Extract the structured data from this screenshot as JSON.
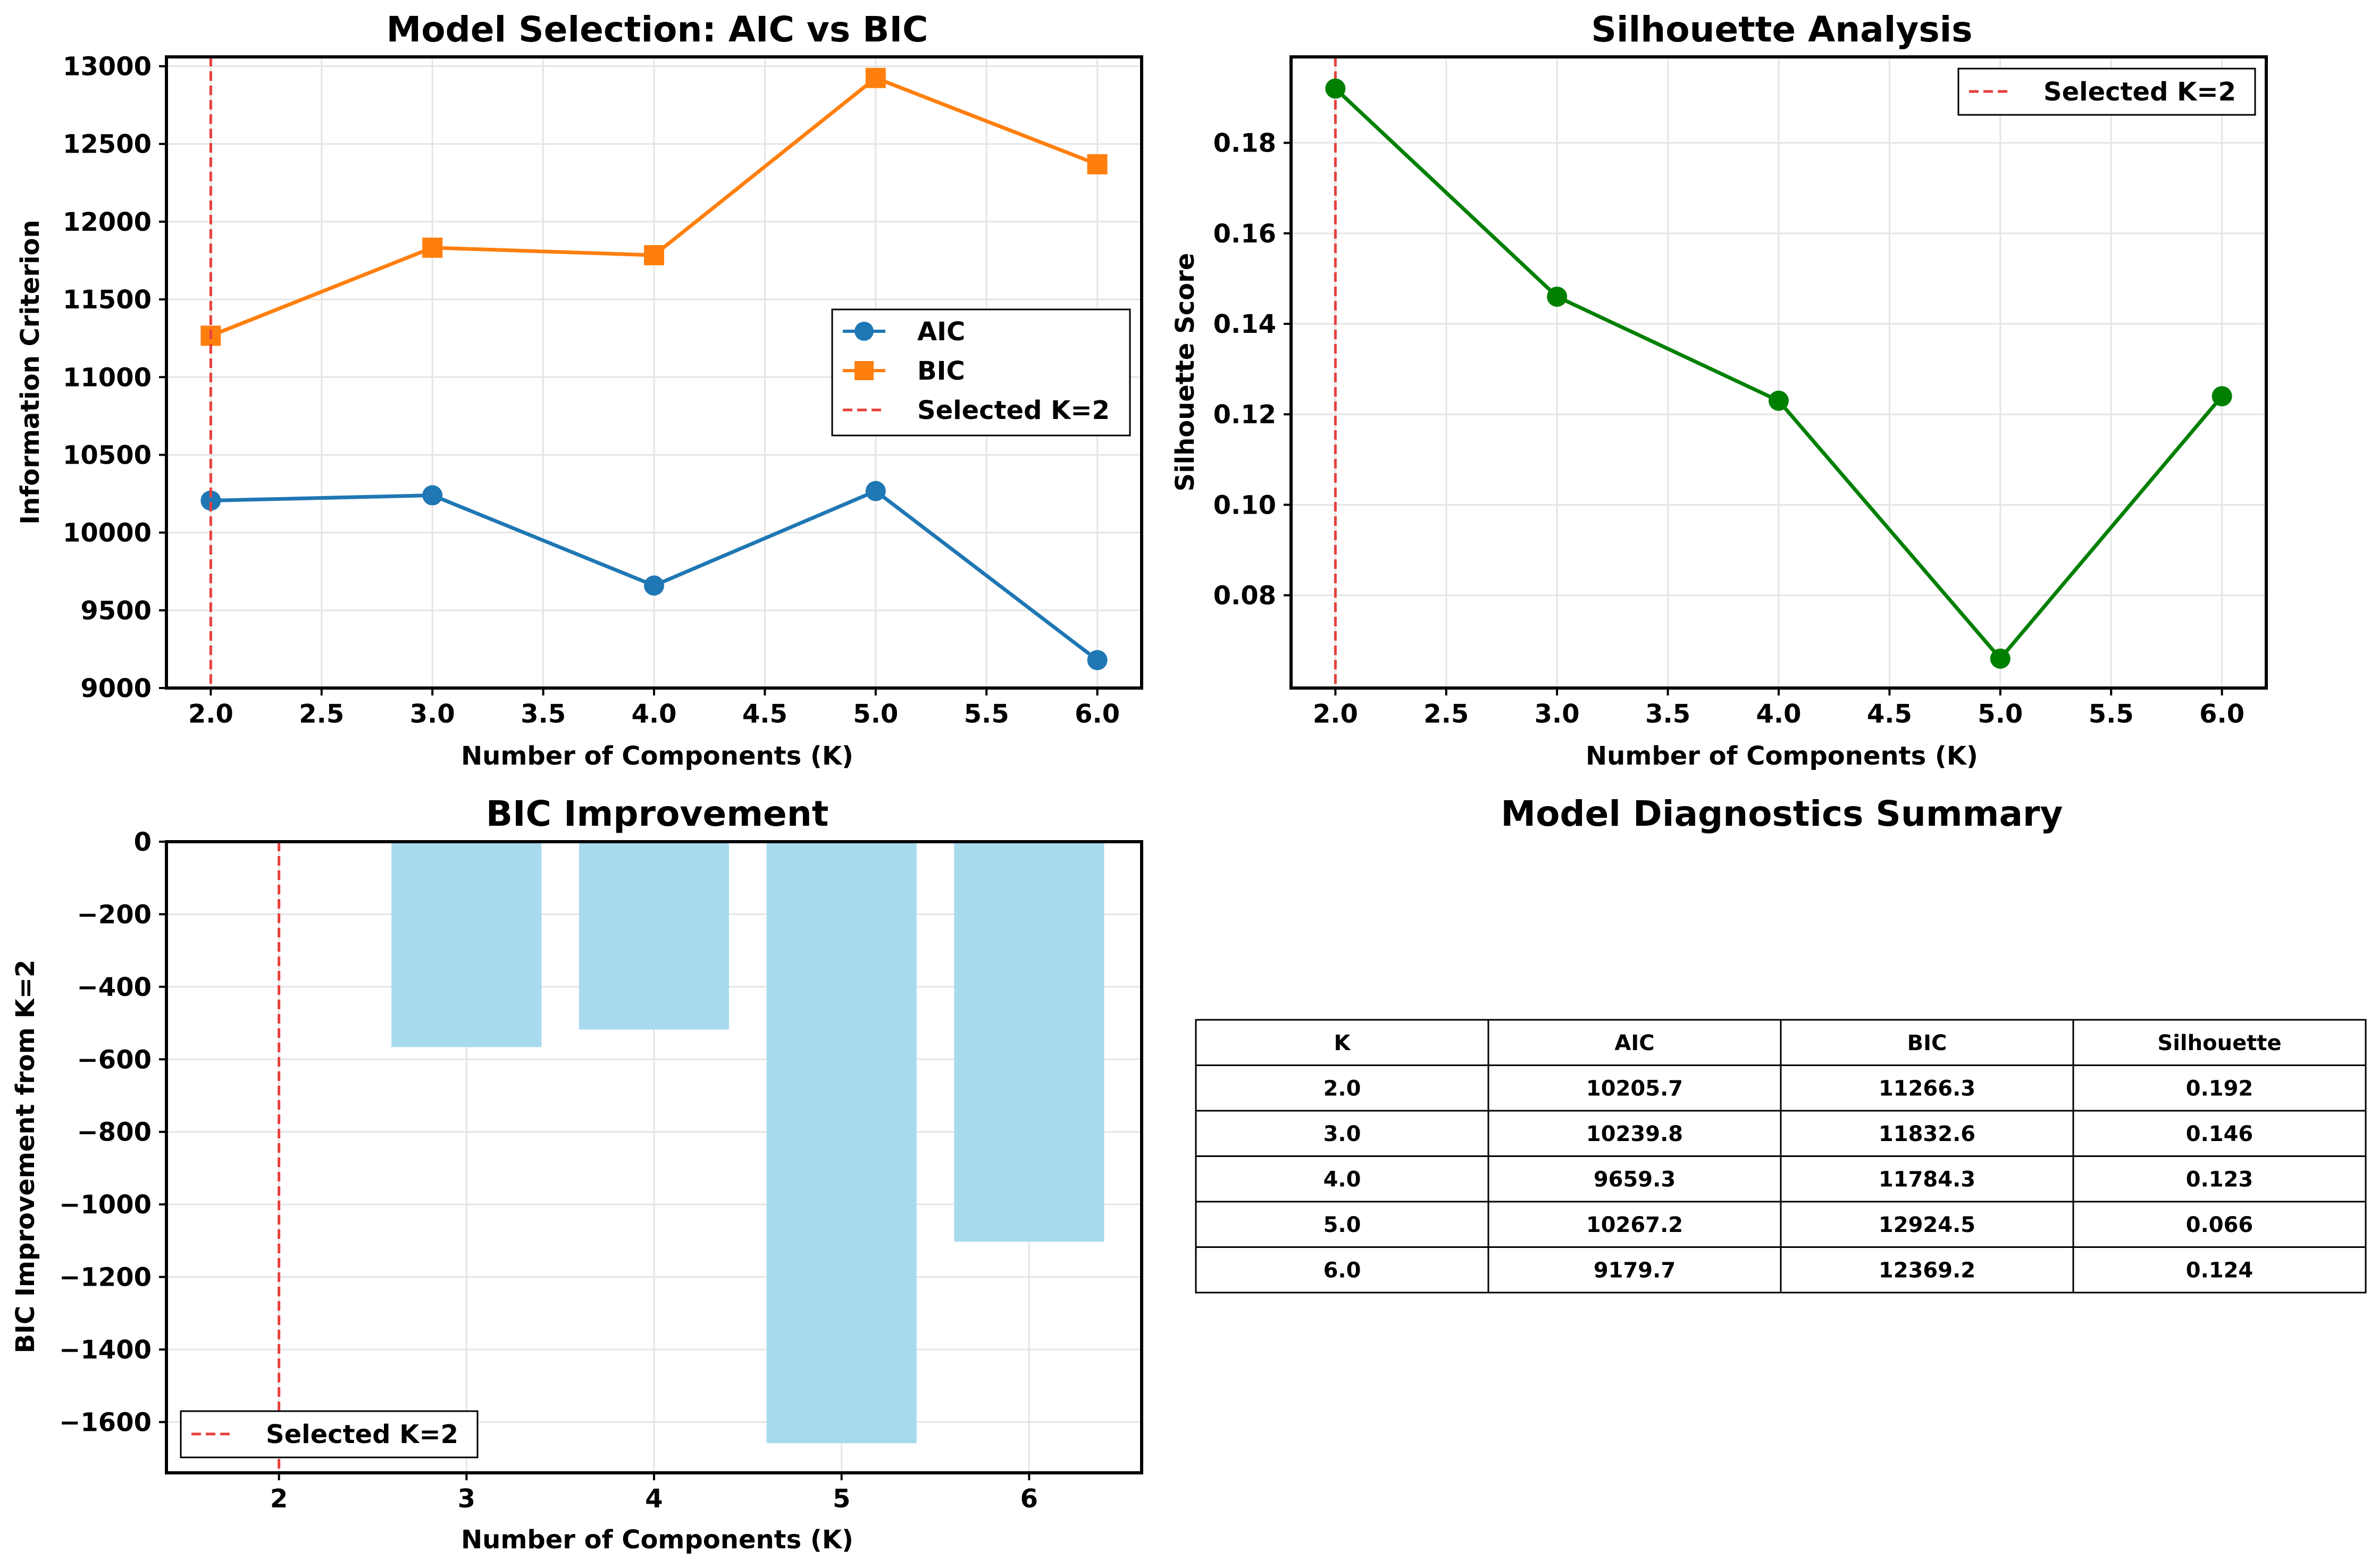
{
  "colors": {
    "aic": "#1f77b4",
    "bic": "#ff7f0e",
    "selected": "#e8403d",
    "silhouette": "#008000",
    "bar": "#a8daee",
    "grid": "#e5e5e5"
  },
  "chart_data": [
    {
      "type": "line",
      "title": "Model Selection: AIC vs BIC",
      "xlabel": "Number of Components (K)",
      "ylabel": "Information Criterion",
      "x": [
        2.0,
        3.0,
        4.0,
        5.0,
        6.0
      ],
      "xlim": [
        1.8,
        6.2
      ],
      "ylim": [
        9000,
        13060
      ],
      "xticks": [
        "2.0",
        "2.5",
        "3.0",
        "3.5",
        "4.0",
        "4.5",
        "5.0",
        "5.5",
        "6.0"
      ],
      "yticks": [
        "9000",
        "9500",
        "10000",
        "10500",
        "11000",
        "11500",
        "12000",
        "12500",
        "13000"
      ],
      "series": [
        {
          "name": "AIC",
          "values": [
            10205.7,
            10239.8,
            9659.3,
            10267.2,
            9179.7
          ],
          "marker": "circle"
        },
        {
          "name": "BIC",
          "values": [
            11266.3,
            11832.6,
            11784.3,
            12924.5,
            12369.2
          ],
          "marker": "square"
        }
      ],
      "vline": {
        "x": 2,
        "label": "Selected K=2"
      },
      "legend": "center-right",
      "grid": true
    },
    {
      "type": "line",
      "title": "Silhouette Analysis",
      "xlabel": "Number of Components (K)",
      "ylabel": "Silhouette Score",
      "x": [
        2.0,
        3.0,
        4.0,
        5.0,
        6.0
      ],
      "xlim": [
        1.8,
        6.2
      ],
      "ylim": [
        0.0595,
        0.199
      ],
      "xticks": [
        "2.0",
        "2.5",
        "3.0",
        "3.5",
        "4.0",
        "4.5",
        "5.0",
        "5.5",
        "6.0"
      ],
      "yticks": [
        "0.08",
        "0.10",
        "0.12",
        "0.14",
        "0.16",
        "0.18"
      ],
      "series": [
        {
          "values": [
            0.192,
            0.146,
            0.123,
            0.066,
            0.124
          ],
          "marker": "circle"
        }
      ],
      "vline": {
        "x": 2,
        "label": "Selected K=2"
      },
      "legend": "top-right",
      "grid": true
    },
    {
      "type": "bar",
      "title": "BIC Improvement",
      "xlabel": "Number of Components (K)",
      "ylabel": "BIC Improvement from K=2",
      "categories": [
        "3",
        "4",
        "5",
        "6"
      ],
      "values": [
        -566.3,
        -518.0,
        -1658.2,
        -1102.9
      ],
      "xlim": [
        1.4,
        6.6
      ],
      "ylim": [
        -1740,
        0
      ],
      "xticks": [
        "2",
        "3",
        "4",
        "5",
        "6"
      ],
      "yticks": [
        "0",
        "−200",
        "−400",
        "−600",
        "−800",
        "−1000",
        "−1200",
        "−1400",
        "−1600"
      ],
      "vline": {
        "x": 2,
        "label": "Selected K=2"
      },
      "legend": "bottom-left",
      "grid": true
    },
    {
      "type": "table",
      "title": "Model Diagnostics Summary",
      "columns": [
        "K",
        "AIC",
        "BIC",
        "Silhouette"
      ],
      "rows": [
        [
          "2.0",
          "10205.7",
          "11266.3",
          "0.192"
        ],
        [
          "3.0",
          "10239.8",
          "11832.6",
          "0.146"
        ],
        [
          "4.0",
          "9659.3",
          "11784.3",
          "0.123"
        ],
        [
          "5.0",
          "10267.2",
          "12924.5",
          "0.066"
        ],
        [
          "6.0",
          "9179.7",
          "12369.2",
          "0.124"
        ]
      ]
    }
  ]
}
